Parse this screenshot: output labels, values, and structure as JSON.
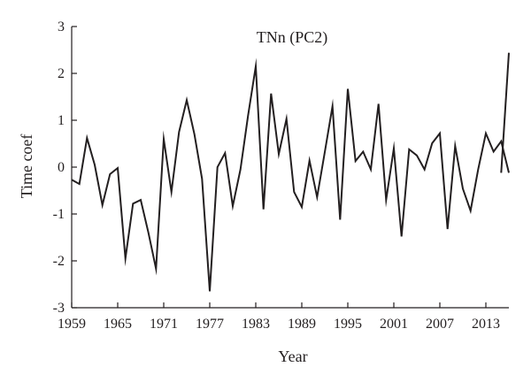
{
  "chart_data": {
    "type": "line",
    "title": "TNn (PC2)",
    "xlabel": "Year",
    "ylabel": "Time coef",
    "xlim": [
      1959,
      2016
    ],
    "ylim": [
      -3,
      3
    ],
    "xticks": [
      1959,
      1965,
      1971,
      1977,
      1983,
      1989,
      1995,
      2001,
      2007,
      2013
    ],
    "yticks": [
      3,
      2,
      1,
      0,
      -1,
      -2,
      -3
    ],
    "grid": false,
    "series": [
      {
        "name": "",
        "color": "#231f20",
        "x": [
          1959,
          1960,
          1961,
          1962,
          1963,
          1964,
          1965,
          1966,
          1967,
          1968,
          1969,
          1970,
          1971,
          1972,
          1973,
          1974,
          1975,
          1976,
          1977,
          1978,
          1979,
          1980,
          1981,
          1982,
          1983,
          1984,
          1985,
          1986,
          1987,
          1988,
          1989,
          1990,
          1991,
          1992,
          1993,
          1994,
          1995,
          1996,
          1997,
          1998,
          1999,
          2000,
          2001,
          2002,
          2003,
          2004,
          2005,
          2006,
          2007,
          2008,
          2009,
          2010,
          2011,
          2012,
          2013,
          2014,
          2015,
          2016
        ],
        "values": [
          -0.27,
          -0.36,
          0.62,
          0.05,
          -0.81,
          -0.15,
          -0.02,
          -1.95,
          -0.78,
          -0.7,
          -1.4,
          -2.17,
          0.6,
          -0.53,
          0.75,
          1.43,
          0.7,
          -0.25,
          -2.65,
          0.0,
          0.3,
          -0.83,
          -0.05,
          1.1,
          2.15,
          -0.9,
          1.57,
          0.28,
          1.03,
          -0.53,
          -0.85,
          0.14,
          -0.64,
          0.32,
          1.3,
          -1.12,
          1.67,
          0.13,
          0.33,
          -0.05,
          1.35,
          -0.7,
          0.4,
          -1.48,
          0.38,
          0.25,
          -0.05,
          0.51,
          0.72,
          -1.32,
          0.45,
          -0.46,
          -0.93,
          -0.05,
          0.72,
          0.33,
          0.55,
          -0.12
        ]
      },
      {
        "name": "",
        "color": "#231f20",
        "x": [
          2015,
          2016
        ],
        "values": [
          -0.12,
          2.44
        ]
      }
    ]
  }
}
